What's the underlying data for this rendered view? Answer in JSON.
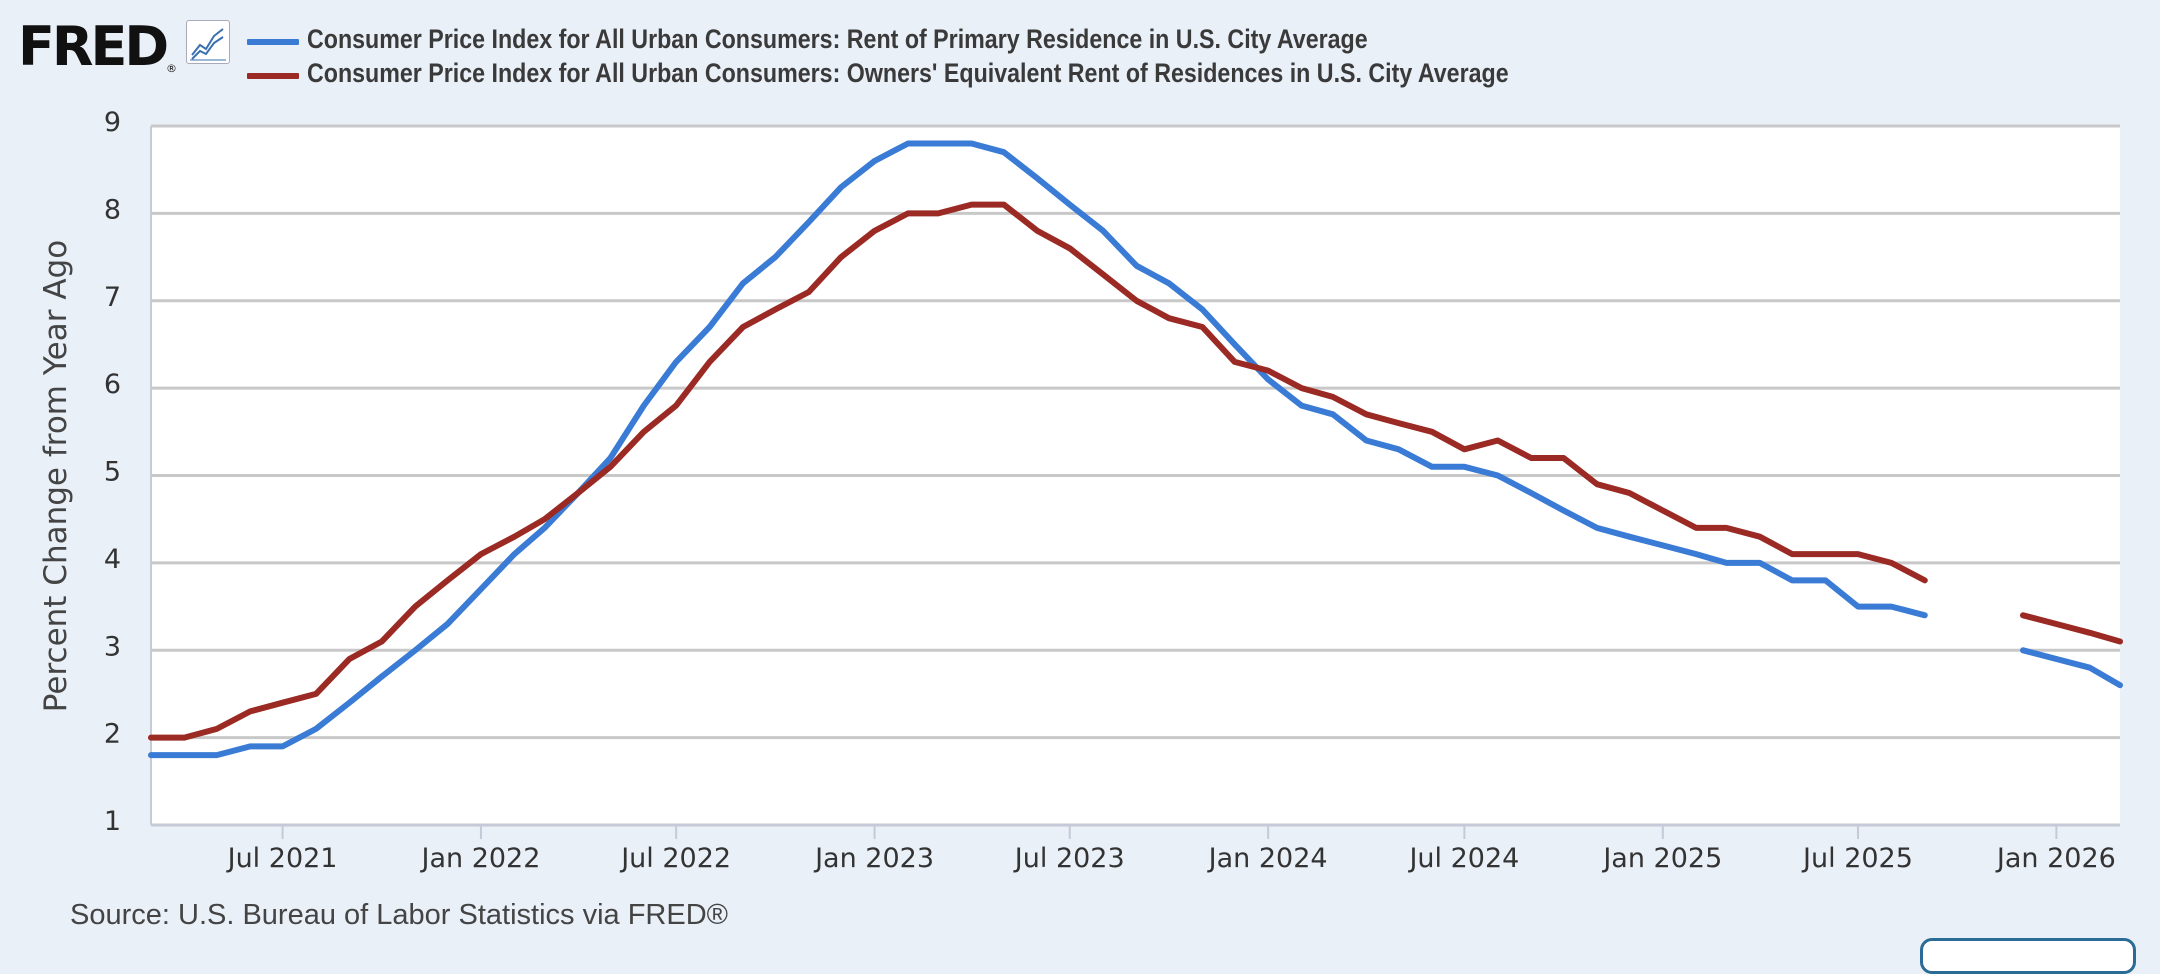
{
  "brand": {
    "logo_text": "FRED",
    "logo_mark": "®",
    "icon": "line-chart-icon"
  },
  "source": "Source: U.S. Bureau of Labor Statistics via FRED®",
  "chart_data": {
    "type": "line",
    "title": "",
    "xlabel": "",
    "ylabel": "Percent Change from Year Ago",
    "ylim": [
      1,
      9
    ],
    "yticks": [
      1,
      2,
      3,
      4,
      5,
      6,
      7,
      8,
      9
    ],
    "xlim": [
      "2021-03-01",
      "2026-03-01"
    ],
    "xticks": [
      {
        "date": "2021-07-01",
        "label": "Jul 2021"
      },
      {
        "date": "2022-01-01",
        "label": "Jan 2022"
      },
      {
        "date": "2022-07-01",
        "label": "Jul 2022"
      },
      {
        "date": "2023-01-01",
        "label": "Jan 2023"
      },
      {
        "date": "2023-07-01",
        "label": "Jul 2023"
      },
      {
        "date": "2024-01-01",
        "label": "Jan 2024"
      },
      {
        "date": "2024-07-01",
        "label": "Jul 2024"
      },
      {
        "date": "2025-01-01",
        "label": "Jan 2025"
      },
      {
        "date": "2025-07-01",
        "label": "Jul 2025"
      },
      {
        "date": "2026-01-01",
        "label": "Jan 2026"
      }
    ],
    "grid": true,
    "legend_position": "top",
    "x": [
      "2021-03-01",
      "2021-04-01",
      "2021-05-01",
      "2021-06-01",
      "2021-07-01",
      "2021-08-01",
      "2021-09-01",
      "2021-10-01",
      "2021-11-01",
      "2021-12-01",
      "2022-01-01",
      "2022-02-01",
      "2022-03-01",
      "2022-04-01",
      "2022-05-01",
      "2022-06-01",
      "2022-07-01",
      "2022-08-01",
      "2022-09-01",
      "2022-10-01",
      "2022-11-01",
      "2022-12-01",
      "2023-01-01",
      "2023-02-01",
      "2023-03-01",
      "2023-04-01",
      "2023-05-01",
      "2023-06-01",
      "2023-07-01",
      "2023-08-01",
      "2023-09-01",
      "2023-10-01",
      "2023-11-01",
      "2023-12-01",
      "2024-01-01",
      "2024-02-01",
      "2024-03-01",
      "2024-04-01",
      "2024-05-01",
      "2024-06-01",
      "2024-07-01",
      "2024-08-01",
      "2024-09-01",
      "2024-10-01",
      "2024-11-01",
      "2024-12-01",
      "2025-01-01",
      "2025-02-01",
      "2025-03-01",
      "2025-04-01",
      "2025-05-01",
      "2025-06-01",
      "2025-07-01",
      "2025-08-01",
      "2025-09-01",
      "2025-10-01",
      "2025-11-01",
      "2025-12-01",
      "2026-01-01",
      "2026-02-01",
      "2026-03-01"
    ],
    "series": [
      {
        "name": "Consumer Price Index for All Urban Consumers: Rent of Primary Residence in U.S. City Average",
        "color": "#3a7bd5",
        "values": [
          1.8,
          1.8,
          1.8,
          1.9,
          1.9,
          2.1,
          2.4,
          2.7,
          3.0,
          3.3,
          3.7,
          4.1,
          4.4,
          4.8,
          5.2,
          5.8,
          6.3,
          6.7,
          7.2,
          7.5,
          7.9,
          8.3,
          8.6,
          8.8,
          8.8,
          8.8,
          8.7,
          8.4,
          8.1,
          7.8,
          7.4,
          7.2,
          6.9,
          6.5,
          6.1,
          5.8,
          5.7,
          5.4,
          5.3,
          5.1,
          5.1,
          5.0,
          4.8,
          4.6,
          4.4,
          4.3,
          4.2,
          4.1,
          4.0,
          4.0,
          3.8,
          3.8,
          3.5,
          3.5,
          3.4,
          null,
          null,
          3.0,
          2.9,
          2.8,
          2.6
        ]
      },
      {
        "name": "Consumer Price Index for All Urban Consumers: Owners' Equivalent Rent of Residences in U.S. City Average",
        "color": "#9b2a24",
        "values": [
          2.0,
          2.0,
          2.1,
          2.3,
          2.4,
          2.5,
          2.9,
          3.1,
          3.5,
          3.8,
          4.1,
          4.3,
          4.5,
          4.8,
          5.1,
          5.5,
          5.8,
          6.3,
          6.7,
          6.9,
          7.1,
          7.5,
          7.8,
          8.0,
          8.0,
          8.1,
          8.1,
          7.8,
          7.6,
          7.3,
          7.0,
          6.8,
          6.7,
          6.3,
          6.2,
          6.0,
          5.9,
          5.7,
          5.6,
          5.5,
          5.3,
          5.4,
          5.2,
          5.2,
          4.9,
          4.8,
          4.6,
          4.4,
          4.4,
          4.3,
          4.1,
          4.1,
          4.1,
          4.0,
          3.8,
          null,
          null,
          3.4,
          3.3,
          3.2,
          3.1
        ]
      }
    ]
  }
}
